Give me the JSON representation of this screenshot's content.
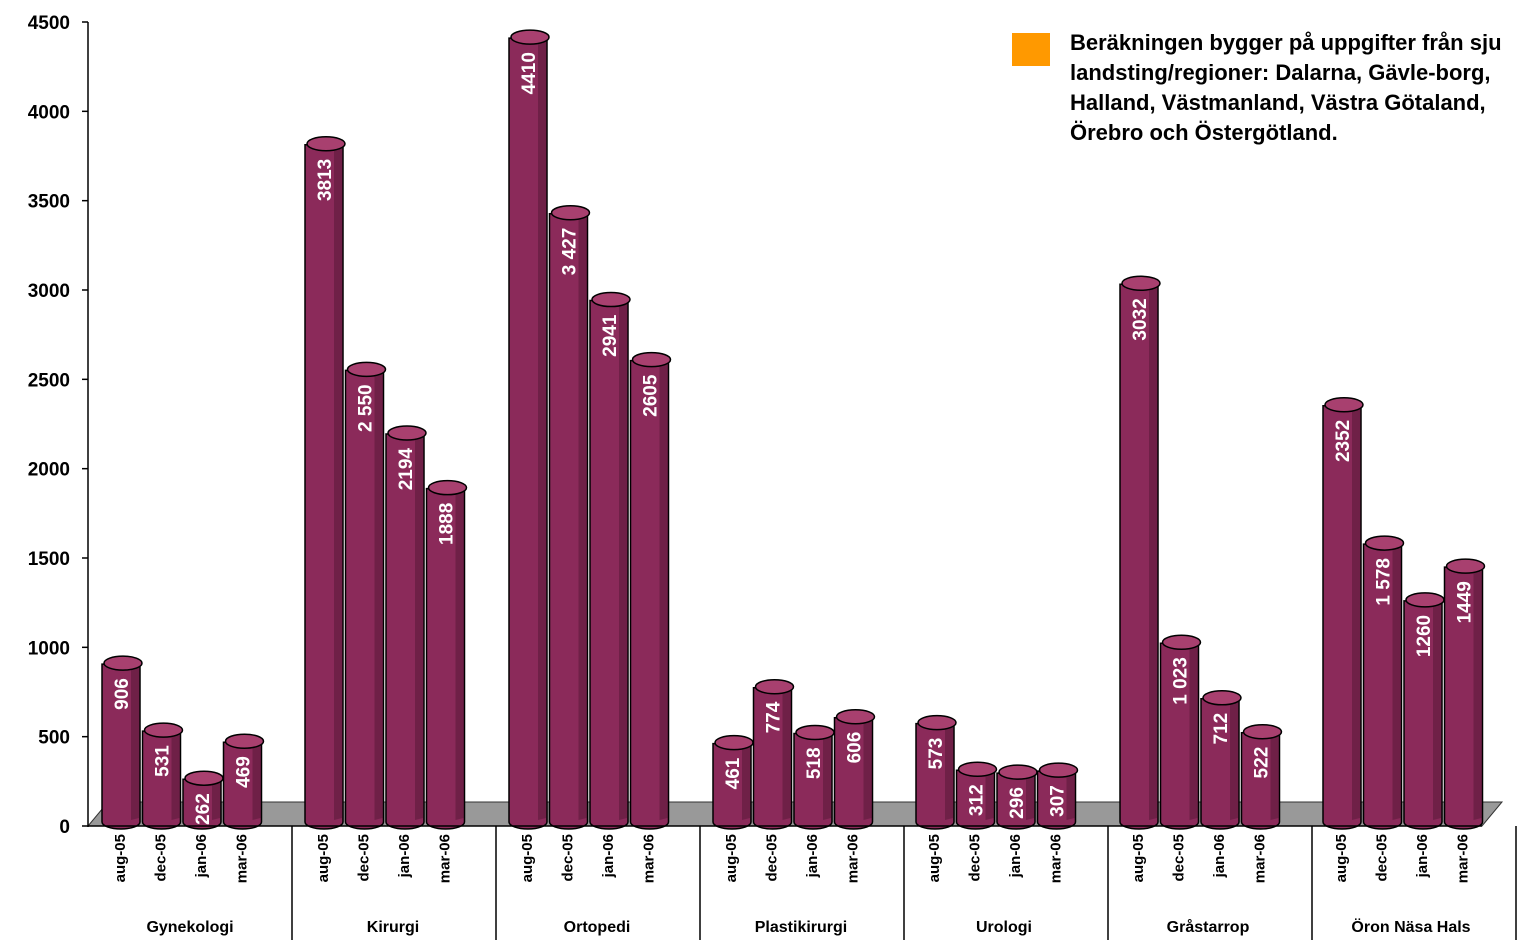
{
  "note": {
    "text": "Beräkningen bygger på uppgifter från sju landsting/regioner: Dalarna, Gävle-borg, Halland, Västmanland, Västra Götaland, Örebro och Östergötland.",
    "swatch_color": "#ff9900"
  },
  "colors": {
    "bar": "#8b2a5a",
    "bar_dark": "#5a1738",
    "bar_top": "#a8406f",
    "floor": "#999999"
  },
  "chart_data": {
    "type": "bar",
    "ylim": [
      0,
      4500
    ],
    "yticks": [
      0,
      500,
      1000,
      1500,
      2000,
      2500,
      3000,
      3500,
      4000,
      4500
    ],
    "periods": [
      "aug-05",
      "dec-05",
      "jan-06",
      "mar-06"
    ],
    "groups": [
      {
        "name": "Gynekologi",
        "values": [
          906,
          531,
          262,
          469
        ],
        "labels": [
          "906",
          "531",
          "262",
          "469"
        ]
      },
      {
        "name": "Kirurgi",
        "values": [
          3813,
          2550,
          2194,
          1888
        ],
        "labels": [
          "3813",
          "2 550",
          "2194",
          "1888"
        ]
      },
      {
        "name": "Ortopedi",
        "values": [
          4410,
          3427,
          2941,
          2605
        ],
        "labels": [
          "4410",
          "3 427",
          "2941",
          "2605"
        ]
      },
      {
        "name": "Plastikirurgi",
        "values": [
          461,
          774,
          518,
          606
        ],
        "labels": [
          "461",
          "774",
          "518",
          "606"
        ]
      },
      {
        "name": "Urologi",
        "values": [
          573,
          312,
          296,
          307
        ],
        "labels": [
          "573",
          "312",
          "296",
          "307"
        ]
      },
      {
        "name": "Gråstarrop",
        "values": [
          3032,
          1023,
          712,
          522
        ],
        "labels": [
          "3032",
          "1 023",
          "712",
          "522"
        ]
      },
      {
        "name": "Öron Näsa Hals",
        "values": [
          2352,
          1578,
          1260,
          1449
        ],
        "labels": [
          "2352",
          "1 578",
          "1260",
          "1449"
        ]
      }
    ]
  }
}
